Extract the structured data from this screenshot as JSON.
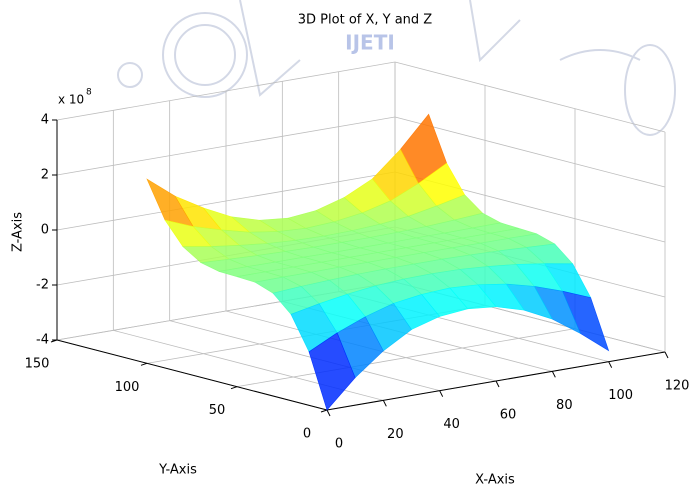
{
  "chart_data": {
    "type": "mesh",
    "title": "3D Plot of X, Y and Z",
    "watermark": "IJETI",
    "x_label": "X-Axis",
    "y_label": "Y-Axis",
    "z_label": "Z-Axis",
    "z_multiplier": {
      "base": "x 10",
      "exponent": "8"
    },
    "x": [
      0,
      10,
      20,
      30,
      40,
      50,
      60,
      70,
      80,
      90,
      100
    ],
    "y": [
      0,
      10,
      20,
      30,
      40,
      50,
      60,
      70,
      80,
      90,
      100
    ],
    "z": [
      [
        -4.0,
        -3.0,
        -2.2,
        -1.6,
        -1.3,
        -1.2,
        -1.3,
        -1.6,
        -2.1,
        -2.8,
        -3.6
      ],
      [
        -2.05,
        -1.54,
        -1.13,
        -0.82,
        -0.67,
        -0.61,
        -0.67,
        -0.82,
        -1.08,
        -1.43,
        -1.84
      ],
      [
        -0.86,
        -0.65,
        -0.48,
        -0.35,
        -0.28,
        -0.26,
        -0.28,
        -0.35,
        -0.45,
        -0.6,
        -0.78
      ],
      [
        -0.26,
        -0.19,
        -0.14,
        -0.1,
        -0.08,
        -0.08,
        -0.08,
        -0.1,
        -0.13,
        -0.18,
        -0.23
      ],
      [
        -0.03,
        -0.02,
        -0.02,
        -0.01,
        -0.01,
        -0.01,
        -0.01,
        -0.01,
        -0.02,
        -0.02,
        -0.03
      ],
      [
        0,
        0,
        0,
        0,
        0,
        0,
        0,
        0,
        0,
        0,
        0
      ],
      [
        0.02,
        0.02,
        0.01,
        0.01,
        0,
        0,
        0,
        0.01,
        0.01,
        0.02,
        0.03
      ],
      [
        0.17,
        0.12,
        0.08,
        0.05,
        0.03,
        0.03,
        0.03,
        0.05,
        0.08,
        0.14,
        0.21
      ],
      [
        0.58,
        0.41,
        0.28,
        0.17,
        0.11,
        0.09,
        0.11,
        0.17,
        0.28,
        0.48,
        0.71
      ],
      [
        1.38,
        0.97,
        0.67,
        0.41,
        0.26,
        0.2,
        0.26,
        0.41,
        0.67,
        1.13,
        1.69
      ],
      [
        2.7,
        1.9,
        1.3,
        0.8,
        0.5,
        0.4,
        0.5,
        0.8,
        1.3,
        2.2,
        3.3
      ]
    ],
    "colormap": "jet",
    "xlim": [
      0,
      120
    ],
    "xticks": [
      0,
      20,
      40,
      60,
      80,
      100,
      120
    ],
    "ylim": [
      0,
      150
    ],
    "yticks": [
      0,
      50,
      100,
      150
    ],
    "zlim": [
      -4,
      4
    ],
    "zticks": [
      -4,
      -2,
      0,
      2,
      4
    ],
    "grid": true
  }
}
